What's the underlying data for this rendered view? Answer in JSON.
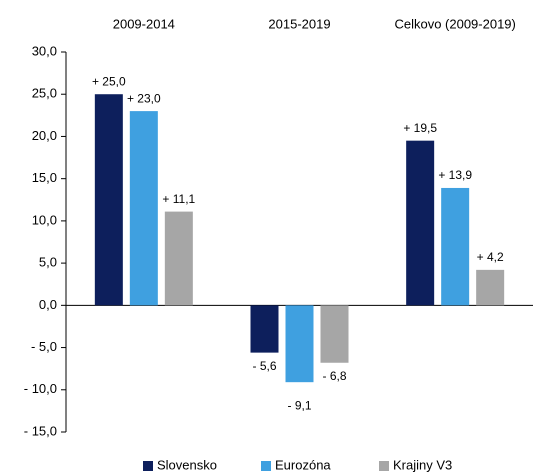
{
  "chart_data": {
    "type": "bar",
    "categories": [
      "2009-2014",
      "2015-2019",
      "Celkovo (2009-2019)"
    ],
    "series": [
      {
        "name": "Slovensko",
        "color": "#0d1f5c",
        "values": [
          25.0,
          -5.6,
          19.5
        ],
        "value_labels": [
          "+ 25,0",
          "- 5,6",
          "+ 19,5"
        ]
      },
      {
        "name": "Eurozóna",
        "color": "#3fa0e0",
        "values": [
          23.0,
          -9.1,
          13.9
        ],
        "value_labels": [
          "+ 23,0",
          "- 9,1",
          "+ 13,9"
        ]
      },
      {
        "name": "Krajiny V3",
        "color": "#a6a6a6",
        "values": [
          11.1,
          -6.8,
          4.2
        ],
        "value_labels": [
          "+ 11,1",
          "- 6,8",
          "+ 4,2"
        ]
      }
    ],
    "ylim": [
      -15,
      30
    ],
    "yticks": [
      {
        "value": -15,
        "label": "- 15,0"
      },
      {
        "value": -10,
        "label": "- 10,0"
      },
      {
        "value": -5,
        "label": "- 5,0"
      },
      {
        "value": 0,
        "label": "0,0"
      },
      {
        "value": 5,
        "label": "5,0"
      },
      {
        "value": 10,
        "label": "10,0"
      },
      {
        "value": 15,
        "label": "15,0"
      },
      {
        "value": 20,
        "label": "20,0"
      },
      {
        "value": 25,
        "label": "25,0"
      },
      {
        "value": 30,
        "label": "30,0"
      }
    ],
    "legend": "bottom",
    "grid": false
  }
}
